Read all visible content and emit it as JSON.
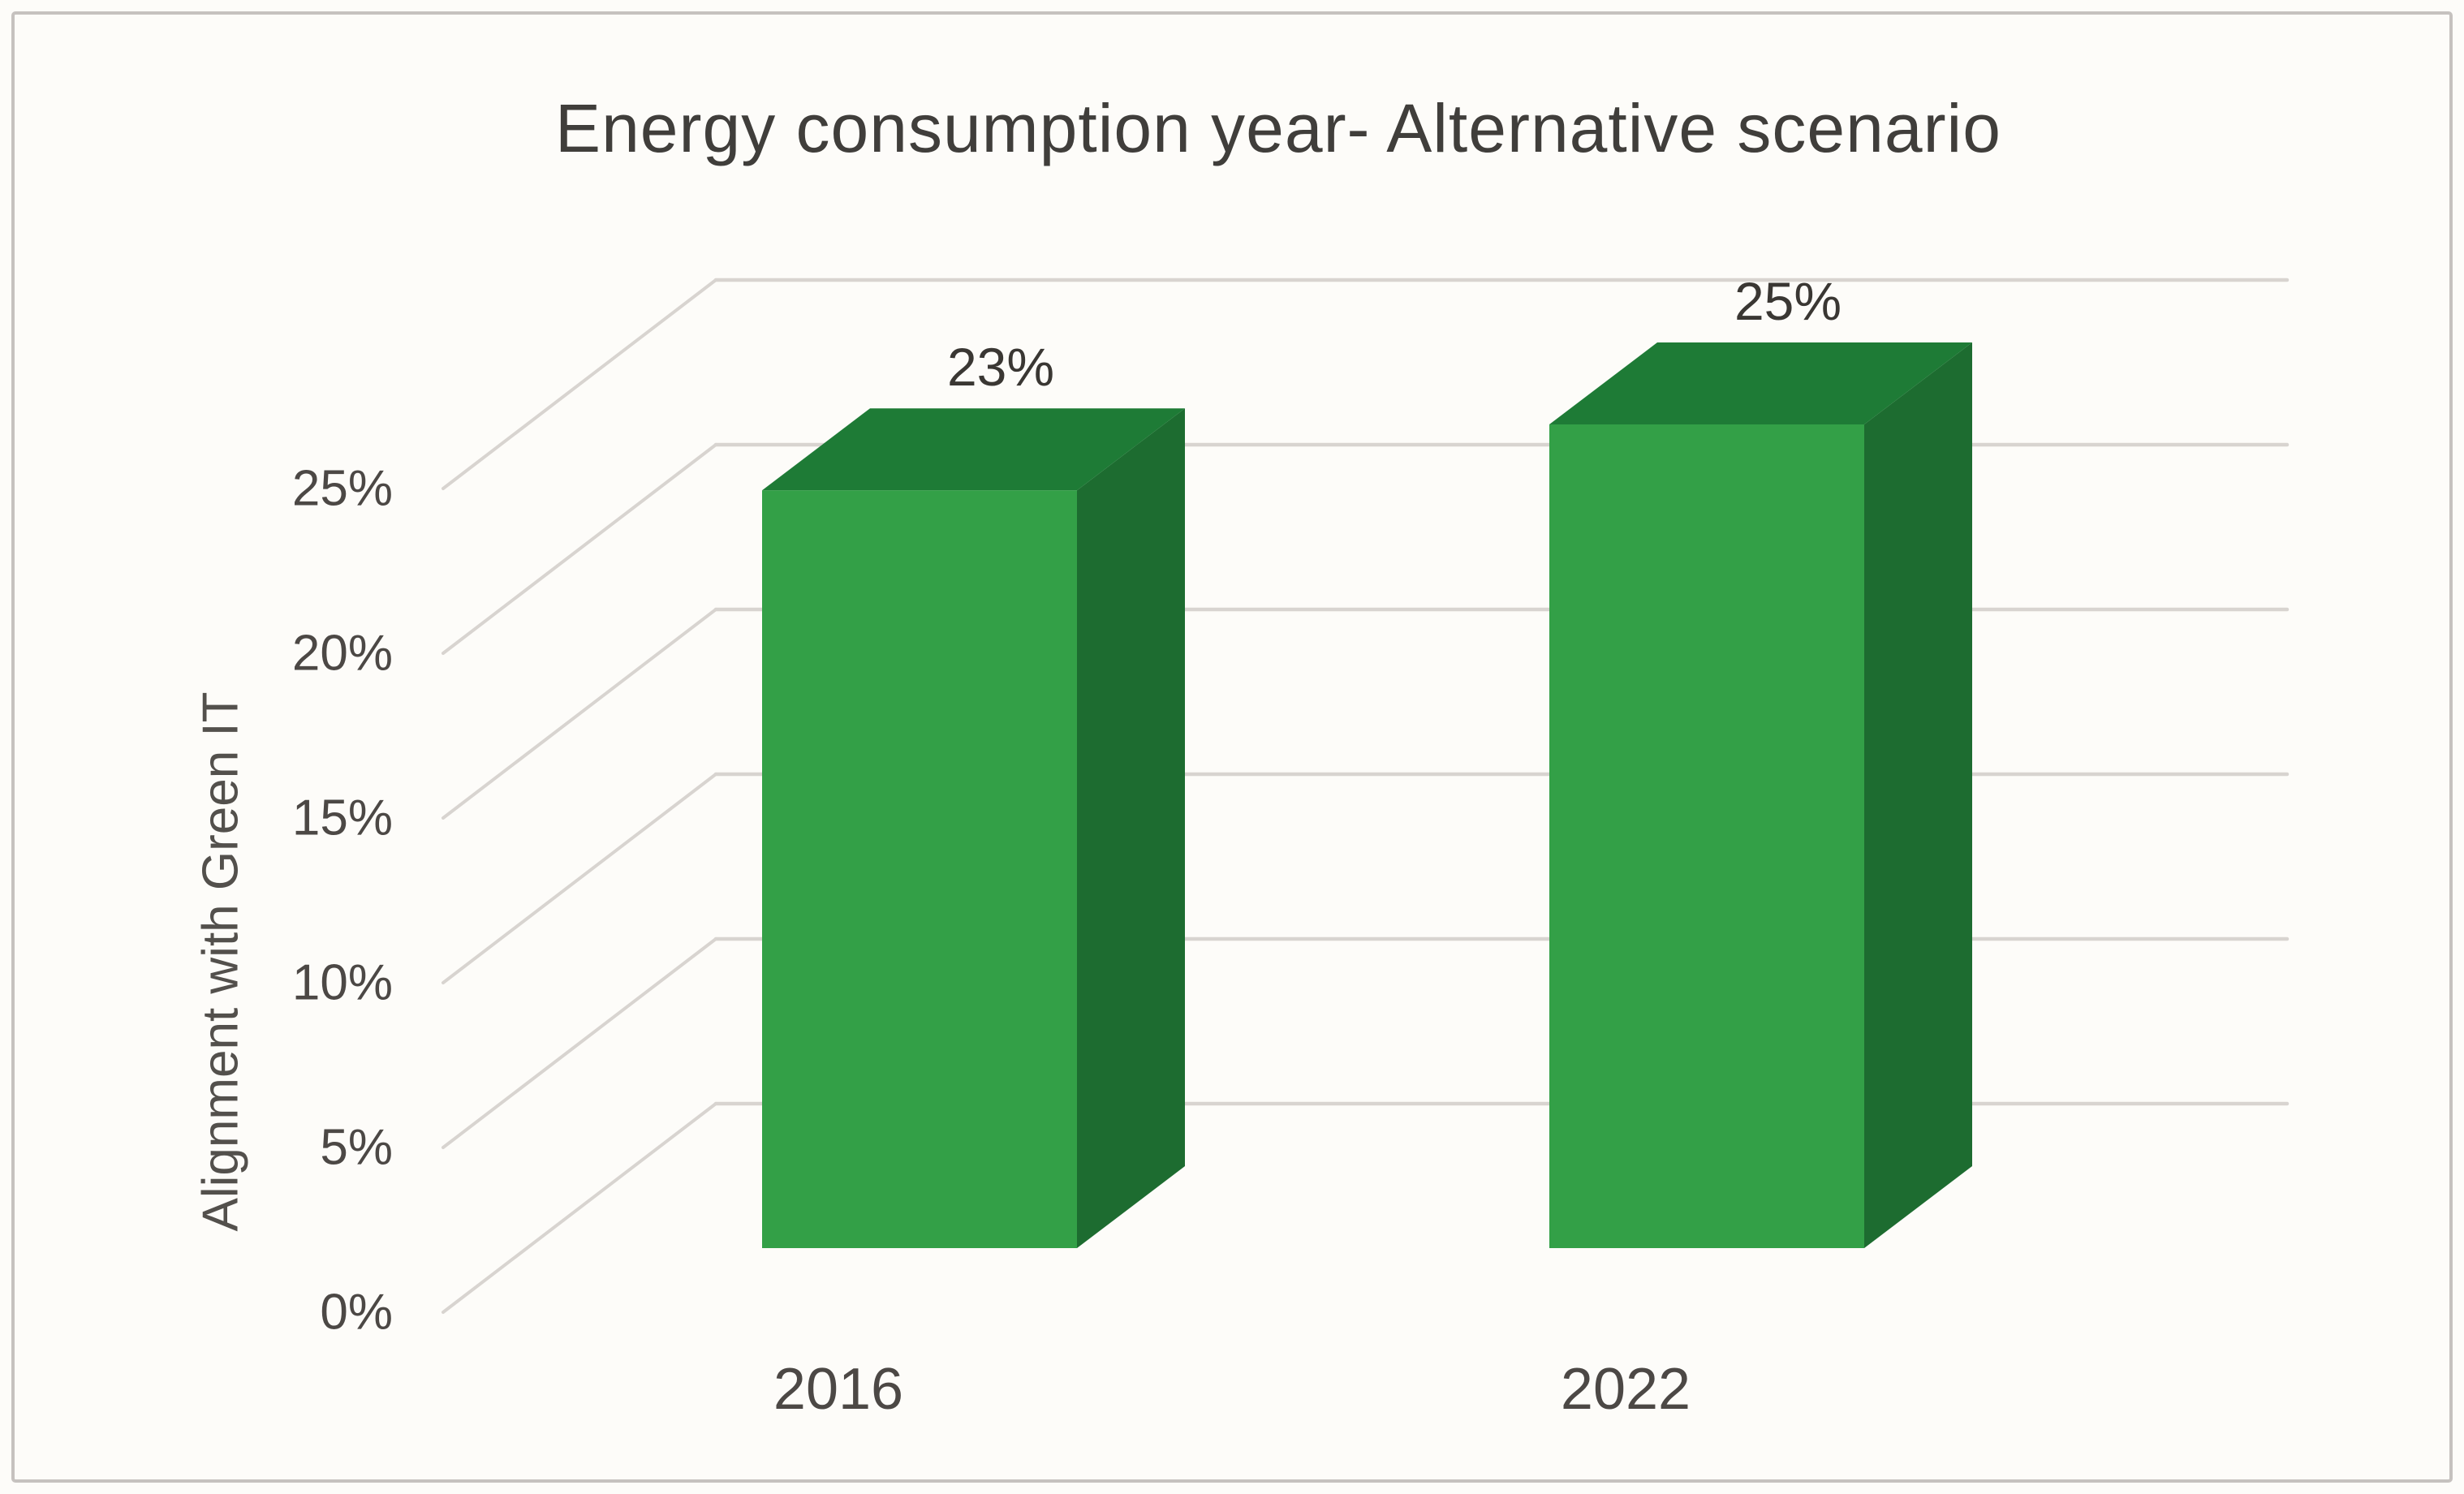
{
  "chart_data": {
    "type": "bar",
    "style": "3d-column",
    "title": "Energy consumption year- Alternative scenario",
    "xlabel": "",
    "ylabel": "Alignment with Green IT",
    "categories": [
      "2016",
      "2022"
    ],
    "values": [
      23,
      25
    ],
    "data_labels": [
      "23%",
      "25%"
    ],
    "tick_values": [
      0,
      5,
      10,
      15,
      20,
      25
    ],
    "tick_labels": [
      "0%",
      "5%",
      "10%",
      "15%",
      "20%",
      "25%"
    ],
    "ylim": [
      0,
      25
    ],
    "grid": true,
    "legend": "none",
    "colors": {
      "bar_front": "#33a047",
      "bar_top": "#1e7b36",
      "bar_side": "#1d6c30",
      "gridline": "#d8d4d0",
      "frame_border": "#c6c2bf",
      "background": "#fdfcf9",
      "title_text": "#403e3b",
      "tick_text": "#4c4845",
      "data_label_text": "#3a3733",
      "axis_title_text": "#53504c"
    }
  }
}
